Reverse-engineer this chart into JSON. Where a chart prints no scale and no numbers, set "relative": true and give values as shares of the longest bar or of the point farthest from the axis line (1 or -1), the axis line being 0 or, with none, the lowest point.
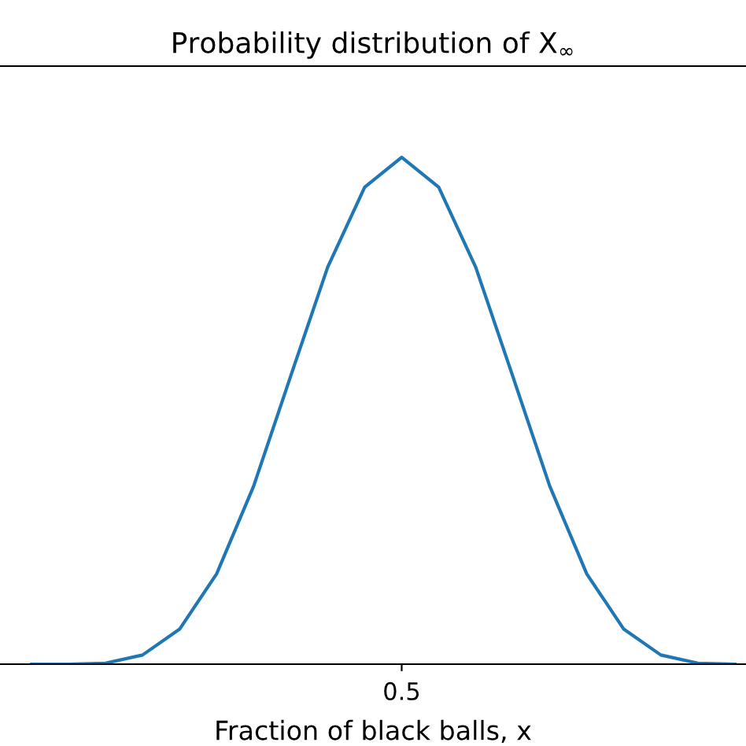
{
  "chart_data": {
    "type": "line",
    "title": "Probability distribution of X$_{∞}$",
    "xlabel": "Fraction of black balls, x",
    "relative": true,
    "categories": [
      null,
      null,
      null,
      null,
      null,
      null,
      null,
      null,
      null,
      null,
      null,
      null,
      null,
      null,
      null,
      null,
      null,
      null,
      null,
      null
    ],
    "series": [
      {
        "color": "#1f77b4",
        "values": [
          0,
          0,
          0.002,
          0.018,
          0.069,
          0.178,
          0.351,
          0.568,
          0.783,
          0.941,
          1,
          0.941,
          0.783,
          0.568,
          0.351,
          0.178,
          0.069,
          0.018,
          0.002,
          0
        ]
      }
    ],
    "annotations": [
      "0.5"
    ],
    "marker": "none",
    "line_style": "solid"
  }
}
